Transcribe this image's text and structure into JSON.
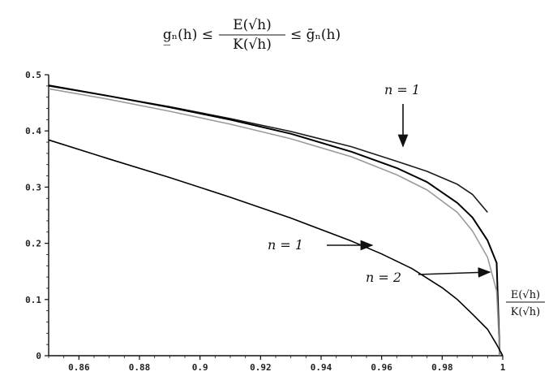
{
  "chart_data": {
    "type": "line",
    "title": "g̲ₙ(h) ≤ E(√h) / K(√h) ≤ ḡₙ(h)",
    "title_parts": {
      "left": "g̲ₙ(h) ≤",
      "num": "E(√h)",
      "den": "K(√h)",
      "right": "≤ ḡₙ(h)"
    },
    "xlabel": "",
    "ylabel": "",
    "xlim": [
      0.85,
      1.0
    ],
    "ylim": [
      0,
      0.5
    ],
    "x_ticks": [
      0.86,
      0.88,
      0.9,
      0.92,
      0.94,
      0.96,
      0.98,
      1
    ],
    "x_tick_labels": [
      "0.86",
      "0.88",
      "0.9",
      "0.92",
      "0.94",
      "0.96",
      "0.98",
      "1"
    ],
    "y_ticks": [
      0,
      0.1,
      0.2,
      0.3,
      0.4,
      0.5
    ],
    "y_tick_labels": [
      "0",
      "0.1",
      "0.2",
      "0.3",
      "0.4",
      "0.5"
    ],
    "grid": false,
    "series": [
      {
        "color": "#1a1a1a",
        "x": [
          0.85,
          0.87,
          0.89,
          0.91,
          0.93,
          0.95,
          0.965,
          0.975,
          0.985,
          0.99,
          0.995
        ],
        "y": [
          0.48,
          0.462,
          0.443,
          0.422,
          0.399,
          0.372,
          0.346,
          0.328,
          0.305,
          0.287,
          0.255
        ]
      },
      {
        "color": "#000000",
        "x": [
          0.85,
          0.87,
          0.89,
          0.91,
          0.93,
          0.95,
          0.965,
          0.975,
          0.985,
          0.99,
          0.995,
          0.998,
          0.999
        ],
        "y": [
          0.481,
          0.462,
          0.442,
          0.42,
          0.395,
          0.363,
          0.334,
          0.309,
          0.272,
          0.246,
          0.205,
          0.165,
          0.0
        ]
      },
      {
        "color": "#9a9a9a",
        "x": [
          0.85,
          0.87,
          0.89,
          0.91,
          0.93,
          0.95,
          0.965,
          0.975,
          0.985,
          0.99,
          0.995,
          0.998,
          0.999
        ],
        "y": [
          0.475,
          0.456,
          0.435,
          0.412,
          0.386,
          0.354,
          0.322,
          0.295,
          0.255,
          0.222,
          0.175,
          0.115,
          0.0
        ]
      },
      {
        "color": "#000000",
        "x": [
          0.85,
          0.87,
          0.89,
          0.91,
          0.93,
          0.95,
          0.96,
          0.97,
          0.98,
          0.985,
          0.99,
          0.995,
          0.998,
          1.0
        ],
        "y": [
          0.384,
          0.35,
          0.317,
          0.282,
          0.245,
          0.204,
          0.181,
          0.155,
          0.121,
          0.1,
          0.074,
          0.047,
          0.02,
          0.0
        ]
      }
    ],
    "annotations": [
      {
        "id": "n1-top",
        "text": "n = 1",
        "x": 0.966,
        "y": 0.535
      },
      {
        "id": "n1-bottom",
        "text": "n = 1",
        "x": 0.929,
        "y": 0.2
      },
      {
        "id": "n2",
        "text": "n = 2",
        "x": 0.952,
        "y": 0.142
      },
      {
        "id": "ratio",
        "num": "E(√h)",
        "den": "K(√h)",
        "x": 1.003,
        "y": 0.09
      }
    ]
  }
}
